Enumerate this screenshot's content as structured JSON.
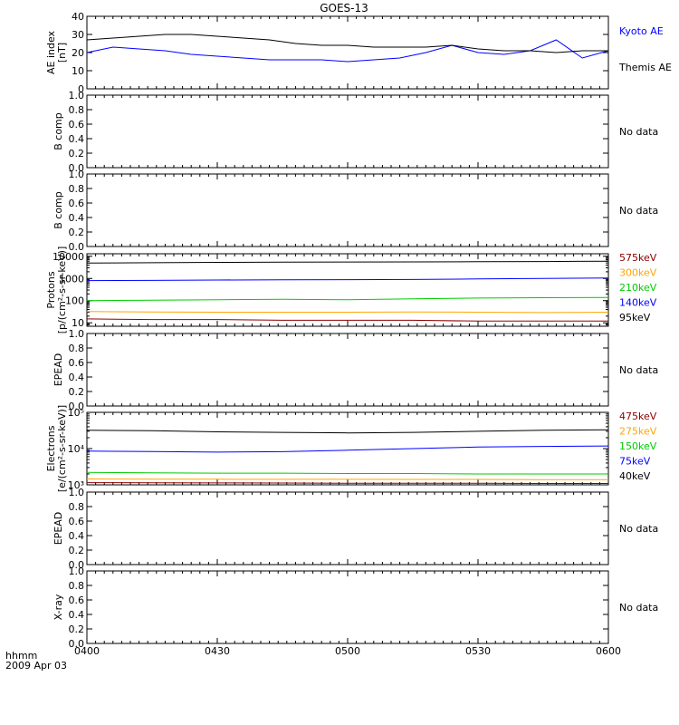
{
  "title": "GOES-13",
  "x_axis": {
    "ticks": [
      "0400",
      "0430",
      "0500",
      "0530",
      "0600"
    ],
    "tick_hours": [
      4.0,
      4.5,
      5.0,
      5.5,
      6.0
    ],
    "range_hours": [
      4.0,
      6.0
    ],
    "unit_label": "hhmm",
    "date_label": "2009 Apr 03"
  },
  "colors": {
    "black": "#000000",
    "blue": "#0000ff",
    "green": "#00cc00",
    "orange": "#ffa500",
    "darkred": "#8b0000"
  },
  "chart_data": [
    {
      "type": "line",
      "ylabel": [
        "AE index",
        "[nT]"
      ],
      "ylim": [
        0,
        40
      ],
      "yticks": [
        "0",
        "10",
        "20",
        "30",
        "40"
      ],
      "x": [
        4.0,
        4.1,
        4.2,
        4.3,
        4.4,
        4.5,
        4.6,
        4.7,
        4.8,
        4.9,
        5.0,
        5.1,
        5.2,
        5.3,
        5.4,
        5.5,
        5.6,
        5.7,
        5.8,
        5.9,
        6.0
      ],
      "series": [
        {
          "name": "Kyoto AE",
          "color": "#0000ff",
          "values": [
            20,
            23,
            22,
            21,
            19,
            18,
            17,
            16,
            16,
            16,
            15,
            16,
            17,
            20,
            24,
            20,
            19,
            21,
            27,
            17,
            21
          ]
        },
        {
          "name": "Themis AE",
          "color": "#000000",
          "values": [
            27,
            28,
            29,
            30,
            30,
            29,
            28,
            27,
            25,
            24,
            24,
            23,
            23,
            23,
            24,
            22,
            21,
            21,
            20,
            21,
            21
          ]
        }
      ],
      "legend": [
        "Kyoto AE",
        "Themis AE"
      ]
    },
    {
      "type": "line",
      "ylabel": [
        "B comp"
      ],
      "ylim": [
        0,
        1
      ],
      "yticks": [
        "0.0",
        "0.2",
        "0.4",
        "0.6",
        "0.8",
        "1.0"
      ],
      "series": [],
      "status": "No data"
    },
    {
      "type": "line",
      "ylabel": [
        "B comp"
      ],
      "ylim": [
        0,
        1
      ],
      "yticks": [
        "0.0",
        "0.2",
        "0.4",
        "0.6",
        "0.8",
        "1.0"
      ],
      "series": [],
      "status": "No data"
    },
    {
      "type": "line",
      "log": true,
      "ylabel": [
        "Protons",
        "[p/(cm²-s-sr-keV)]"
      ],
      "ylim": [
        7,
        13000
      ],
      "yticks": [
        "10",
        "100",
        "1000",
        "10000"
      ],
      "ytick_values": [
        10,
        100,
        1000,
        10000
      ],
      "x": [
        4.0,
        4.25,
        4.5,
        4.75,
        5.0,
        5.25,
        5.5,
        5.75,
        6.0
      ],
      "series": [
        {
          "name": "575keV",
          "color": "#8b0000",
          "values": [
            15,
            14,
            14,
            13,
            13,
            13,
            12,
            12,
            12
          ]
        },
        {
          "name": "300keV",
          "color": "#ffa500",
          "values": [
            32,
            31,
            30,
            30,
            30,
            31,
            30,
            29,
            30
          ]
        },
        {
          "name": "210keV",
          "color": "#00cc00",
          "values": [
            100,
            105,
            110,
            115,
            110,
            120,
            130,
            135,
            140
          ]
        },
        {
          "name": "140keV",
          "color": "#0000ff",
          "values": [
            800,
            820,
            850,
            870,
            880,
            900,
            950,
            1000,
            1050
          ]
        },
        {
          "name": "95keV",
          "color": "#000000",
          "values": [
            5000,
            5100,
            5300,
            5400,
            5500,
            5600,
            5700,
            5800,
            6000
          ]
        }
      ],
      "legend": [
        "575keV",
        "300keV",
        "210keV",
        "140keV",
        "95keV"
      ]
    },
    {
      "type": "line",
      "ylabel": [
        "EPEAD"
      ],
      "ylim": [
        0,
        1
      ],
      "yticks": [
        "0.0",
        "0.2",
        "0.4",
        "0.6",
        "0.8",
        "1.0"
      ],
      "series": [],
      "status": "No data"
    },
    {
      "type": "line",
      "log": true,
      "ylabel": [
        "Electrons",
        "[e/(cm²-s-sr-keV)]"
      ],
      "ylim": [
        1000,
        100000
      ],
      "yticks": [
        "10³",
        "10⁴",
        "10⁵"
      ],
      "ytick_values": [
        1000,
        10000,
        100000
      ],
      "x": [
        4.0,
        4.25,
        4.5,
        4.75,
        5.0,
        5.25,
        5.5,
        5.75,
        6.0
      ],
      "series": [
        {
          "name": "475keV",
          "color": "#8b0000",
          "values": [
            1150,
            1140,
            1130,
            1120,
            1110,
            1100,
            1100,
            1090,
            1090
          ]
        },
        {
          "name": "275keV",
          "color": "#ffa500",
          "values": [
            1450,
            1440,
            1430,
            1420,
            1420,
            1410,
            1410,
            1400,
            1400
          ]
        },
        {
          "name": "150keV",
          "color": "#00cc00",
          "values": [
            2200,
            2150,
            2100,
            2100,
            2050,
            2050,
            2000,
            2000,
            2000
          ]
        },
        {
          "name": "75keV",
          "color": "#0000ff",
          "values": [
            8500,
            8300,
            8000,
            8200,
            9000,
            10000,
            11000,
            11500,
            11800
          ]
        },
        {
          "name": "40keV",
          "color": "#000000",
          "values": [
            32000,
            31000,
            29000,
            28000,
            27000,
            28000,
            30000,
            32000,
            33000
          ]
        }
      ],
      "legend": [
        "475keV",
        "275keV",
        "150keV",
        "75keV",
        "40keV"
      ]
    },
    {
      "type": "line",
      "ylabel": [
        "EPEAD"
      ],
      "ylim": [
        0,
        1
      ],
      "yticks": [
        "0.0",
        "0.2",
        "0.4",
        "0.6",
        "0.8",
        "1.0"
      ],
      "series": [],
      "status": "No data"
    },
    {
      "type": "line",
      "ylabel": [
        "X-ray"
      ],
      "ylim": [
        0,
        1
      ],
      "yticks": [
        "0.0",
        "0.2",
        "0.4",
        "0.6",
        "0.8",
        "1.0"
      ],
      "series": [],
      "status": "No data"
    }
  ]
}
